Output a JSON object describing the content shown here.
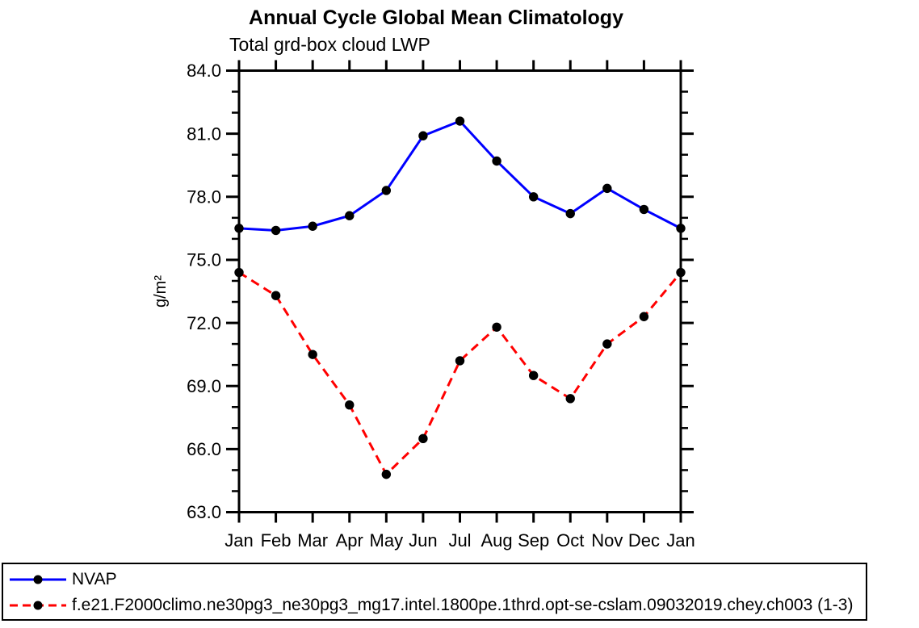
{
  "header": {
    "title": "Annual Cycle Global Mean Climatology",
    "subtitle": "Total grd-box cloud LWP"
  },
  "chart_data": {
    "type": "line",
    "title": "Annual Cycle Global Mean Climatology",
    "subtitle": "Total grd-box cloud LWP",
    "xlabel": "",
    "ylabel": "g/m²",
    "categories": [
      "Jan",
      "Feb",
      "Mar",
      "Apr",
      "May",
      "Jun",
      "Jul",
      "Aug",
      "Sep",
      "Oct",
      "Nov",
      "Dec",
      "Jan"
    ],
    "ylim": [
      63.0,
      84.0
    ],
    "yticks": [
      63.0,
      66.0,
      69.0,
      72.0,
      75.0,
      78.0,
      81.0,
      84.0
    ],
    "ytick_labels": [
      "63.0",
      "66.0",
      "69.0",
      "72.0",
      "75.0",
      "78.0",
      "81.0",
      "84.0"
    ],
    "minor_tick_step": 1.0,
    "grid": false,
    "legend_position": "bottom-left-box",
    "axis_color": "#000000",
    "marker_color": "#000000",
    "series": [
      {
        "name": "NVAP",
        "color": "#0000ff",
        "line_style": "solid",
        "marker": "filled-circle",
        "values": [
          76.5,
          76.4,
          76.6,
          77.1,
          78.3,
          80.9,
          81.6,
          79.7,
          78.0,
          77.2,
          78.4,
          77.4,
          76.5
        ]
      },
      {
        "name": "f.e21.F2000climo.ne30pg3_ne30pg3_mg17.intel.1800pe.1thrd.opt-se-cslam.09032019.chey.ch003 (1-3)",
        "color": "#ff0000",
        "line_style": "dashed",
        "marker": "filled-circle",
        "values": [
          74.4,
          73.3,
          70.5,
          68.1,
          64.8,
          66.5,
          70.2,
          71.8,
          69.5,
          68.4,
          71.0,
          72.3,
          74.4
        ]
      }
    ]
  }
}
